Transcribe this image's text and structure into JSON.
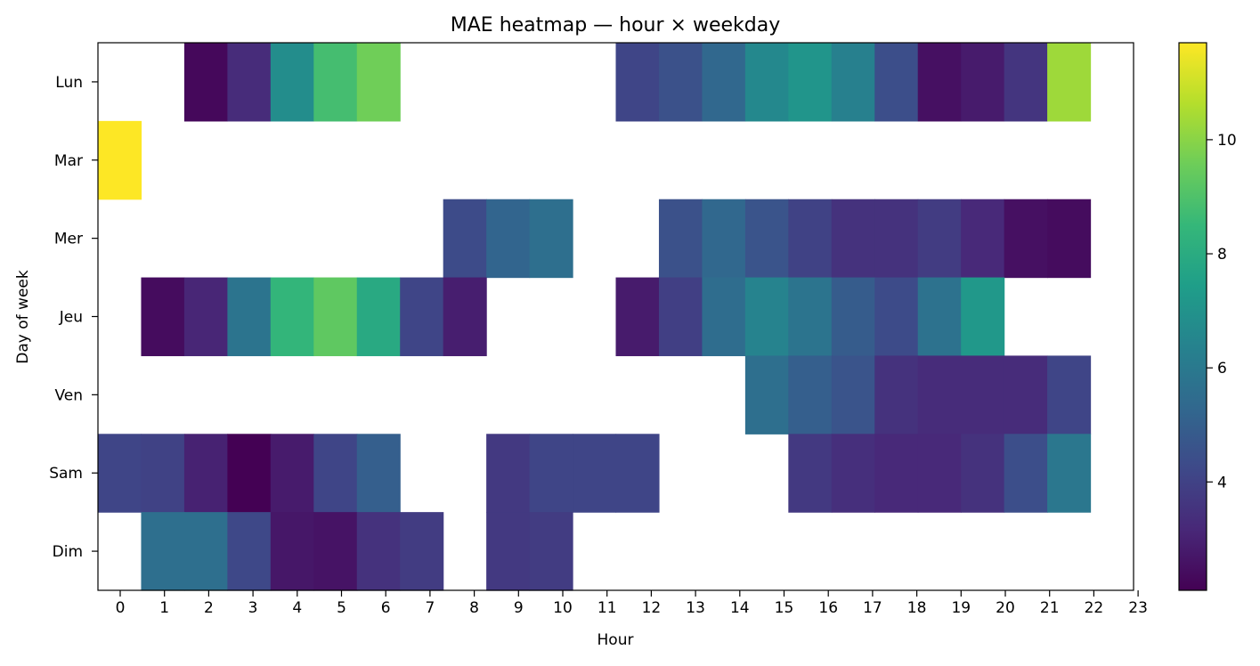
{
  "chart_data": {
    "type": "heatmap",
    "title": "MAE heatmap — hour × weekday",
    "xlabel": "Hour",
    "ylabel": "Day of week",
    "x": [
      0,
      1,
      2,
      3,
      4,
      5,
      6,
      7,
      8,
      9,
      10,
      11,
      12,
      13,
      14,
      15,
      16,
      17,
      18,
      19,
      20,
      21,
      22,
      23
    ],
    "y": [
      "Lun",
      "Mar",
      "Mer",
      "Jeu",
      "Ven",
      "Sam",
      "Dim"
    ],
    "colormap": "viridis",
    "vmin": 2.1,
    "vmax": 11.7,
    "colorbar_ticks": [
      4,
      6,
      8,
      10
    ],
    "grid": false,
    "values": [
      [
        null,
        null,
        2.3,
        3.3,
        6.8,
        8.8,
        9.6,
        null,
        null,
        null,
        null,
        null,
        4.1,
        4.5,
        5.3,
        6.6,
        7.1,
        6.3,
        4.4,
        2.5,
        2.8,
        3.6,
        10.3,
        null
      ],
      [
        11.7,
        null,
        null,
        null,
        null,
        null,
        null,
        null,
        null,
        null,
        null,
        null,
        null,
        null,
        null,
        null,
        null,
        null,
        null,
        null,
        null,
        null,
        null,
        null
      ],
      [
        null,
        null,
        null,
        null,
        null,
        null,
        null,
        null,
        4.3,
        5.2,
        5.6,
        null,
        null,
        4.5,
        5.3,
        4.6,
        4.0,
        3.5,
        3.5,
        3.8,
        3.2,
        2.5,
        2.4,
        null
      ],
      [
        null,
        2.4,
        3.1,
        5.8,
        8.4,
        9.3,
        7.9,
        4.1,
        2.9,
        null,
        null,
        null,
        2.8,
        3.9,
        5.5,
        6.4,
        5.8,
        4.9,
        4.3,
        5.7,
        7.2,
        null,
        null,
        null
      ],
      [
        null,
        null,
        null,
        null,
        null,
        null,
        null,
        null,
        null,
        null,
        null,
        null,
        null,
        null,
        null,
        5.6,
        5.0,
        4.6,
        3.5,
        3.3,
        3.3,
        3.3,
        4.1,
        null
      ],
      [
        4.1,
        4.0,
        3.0,
        2.1,
        2.8,
        4.1,
        5.0,
        null,
        null,
        3.7,
        4.1,
        4.1,
        4.1,
        null,
        null,
        null,
        3.7,
        3.4,
        3.2,
        3.2,
        3.5,
        4.4,
        5.9,
        null
      ],
      [
        null,
        5.6,
        5.6,
        4.2,
        2.7,
        2.6,
        3.5,
        3.8,
        null,
        3.7,
        3.8,
        null,
        null,
        null,
        null,
        null,
        null,
        null,
        null,
        null,
        null,
        null,
        null,
        null
      ]
    ]
  }
}
